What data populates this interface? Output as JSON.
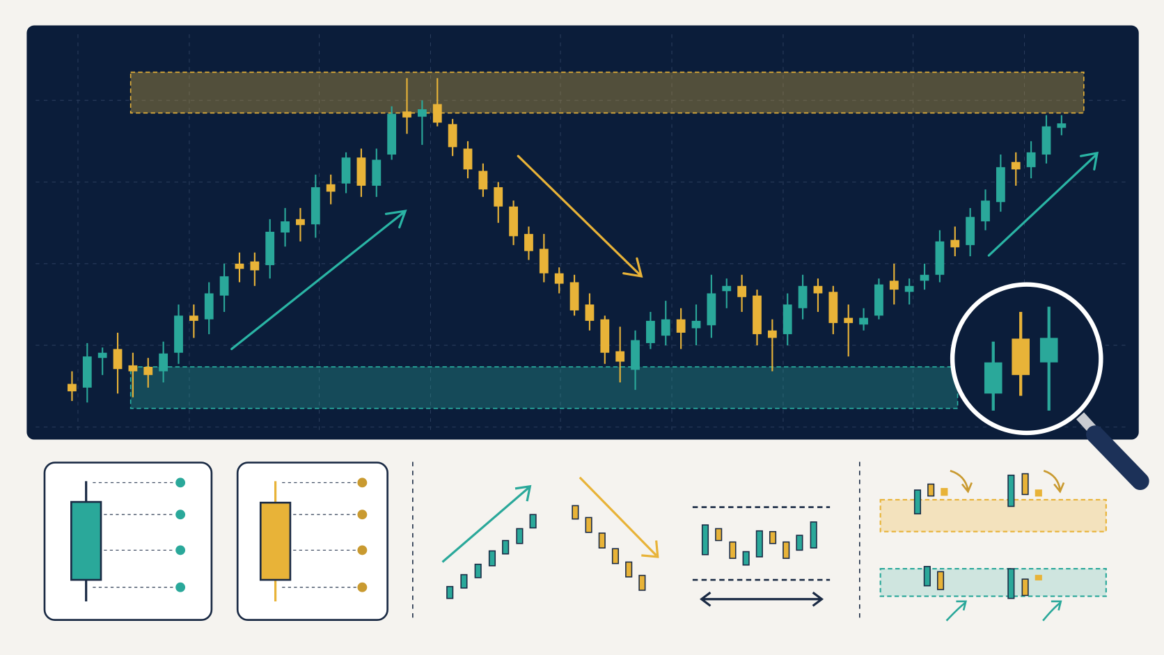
{
  "chart_data": {
    "type": "candlestick",
    "up_color": "#2aa89a",
    "down_color": "#e8b338",
    "ylim": [
      0,
      470
    ],
    "resistance": [
      408,
      463
    ],
    "support": [
      10,
      66
    ],
    "open": [
      43,
      38,
      78,
      90,
      68,
      66,
      60,
      85,
      135,
      130,
      162,
      205,
      208,
      203,
      247,
      265,
      258,
      312,
      313,
      348,
      310,
      352,
      410,
      403,
      420,
      393,
      360,
      330,
      308,
      282,
      245,
      225,
      192,
      180,
      150,
      130,
      87,
      62,
      98,
      108,
      130,
      118,
      122,
      168,
      175,
      162,
      115,
      110,
      145,
      175,
      167,
      132,
      123,
      135,
      182,
      167,
      182,
      190,
      237,
      230,
      262,
      288,
      342,
      335,
      352,
      388
    ],
    "high": [
      60,
      98,
      92,
      112,
      85,
      78,
      100,
      150,
      150,
      180,
      205,
      220,
      220,
      265,
      280,
      280,
      325,
      325,
      355,
      360,
      360,
      417,
      455,
      425,
      455,
      400,
      370,
      340,
      315,
      290,
      255,
      245,
      200,
      190,
      165,
      135,
      120,
      115,
      140,
      155,
      145,
      150,
      190,
      185,
      190,
      170,
      130,
      165,
      190,
      185,
      175,
      150,
      145,
      185,
      205,
      185,
      205,
      250,
      255,
      280,
      305,
      352,
      355,
      370,
      405,
      405
    ],
    "low": [
      20,
      18,
      55,
      30,
      25,
      38,
      45,
      70,
      105,
      110,
      140,
      180,
      175,
      185,
      228,
      235,
      240,
      285,
      300,
      295,
      295,
      345,
      380,
      365,
      390,
      350,
      320,
      295,
      260,
      230,
      210,
      180,
      165,
      135,
      115,
      70,
      45,
      35,
      90,
      95,
      90,
      95,
      105,
      145,
      140,
      95,
      60,
      95,
      130,
      140,
      110,
      80,
      115,
      130,
      150,
      150,
      170,
      180,
      215,
      215,
      250,
      275,
      310,
      320,
      340,
      378
    ],
    "close": [
      33,
      80,
      85,
      63,
      60,
      55,
      84,
      135,
      128,
      165,
      188,
      198,
      196,
      248,
      262,
      257,
      308,
      302,
      348,
      310,
      345,
      407,
      402,
      413,
      395,
      362,
      332,
      305,
      282,
      242,
      222,
      192,
      178,
      142,
      128,
      85,
      73,
      102,
      128,
      130,
      112,
      128,
      165,
      175,
      160,
      110,
      105,
      150,
      175,
      165,
      125,
      125,
      132,
      177,
      170,
      175,
      190,
      235,
      227,
      268,
      290,
      335,
      332,
      355,
      390,
      394
    ]
  }
}
